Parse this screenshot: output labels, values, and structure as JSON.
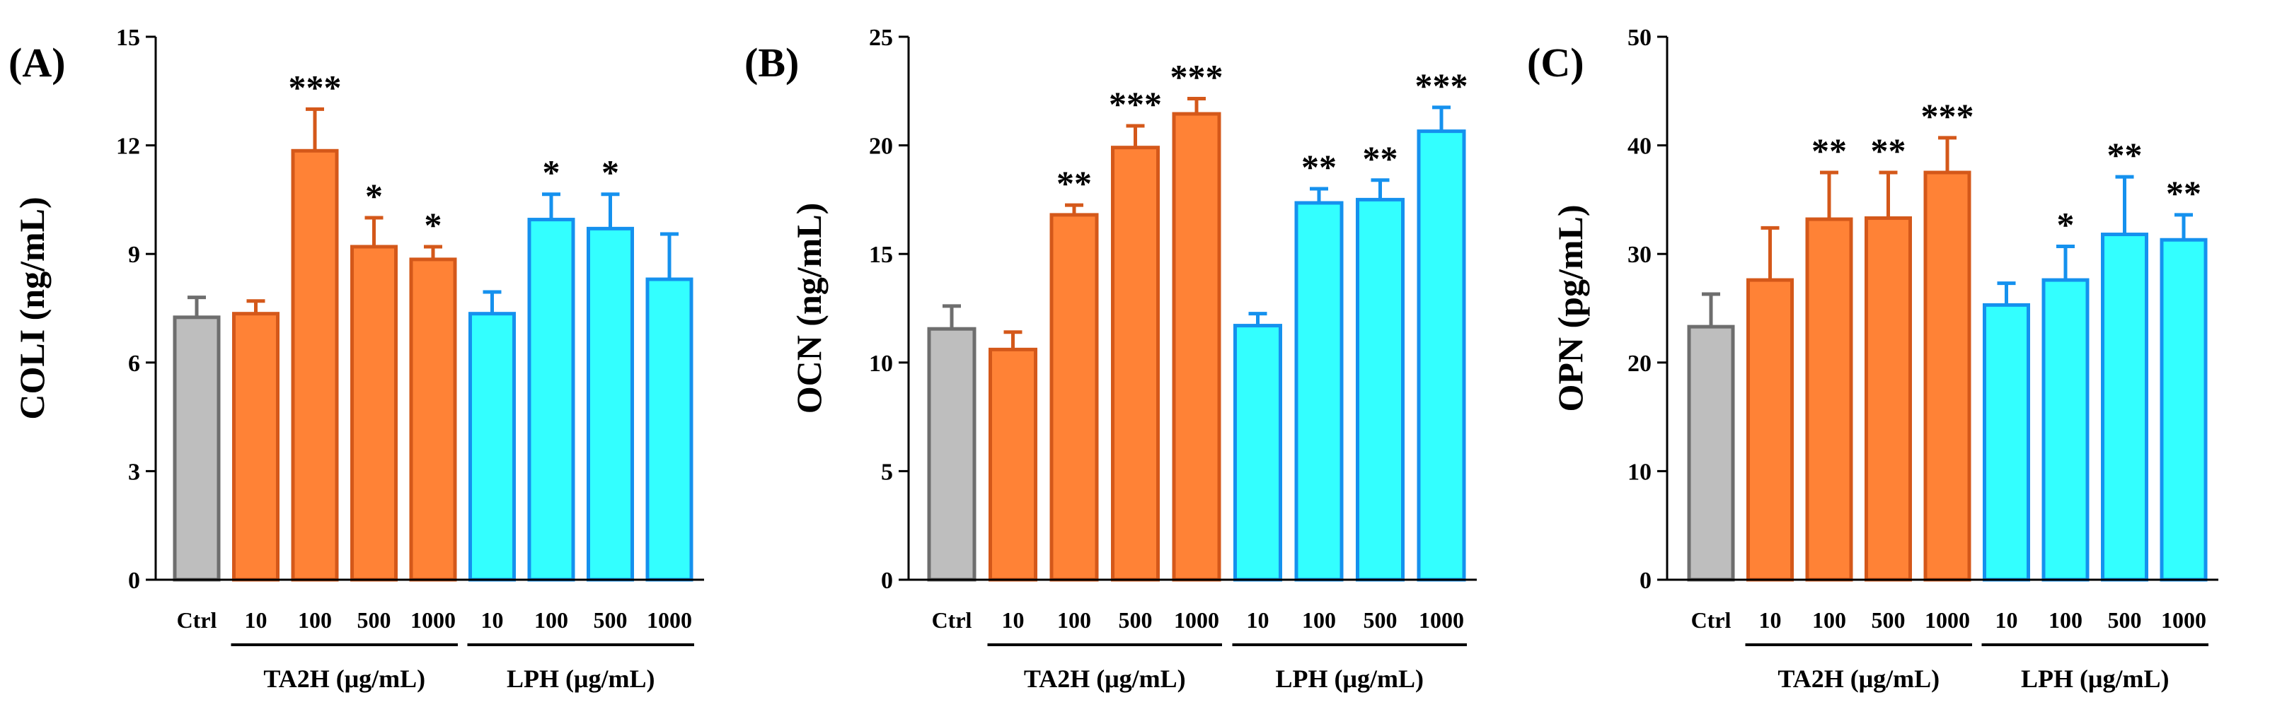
{
  "chart_data": [
    {
      "type": "bar",
      "panel_label": "(A)",
      "ylabel": "COLI (ng/mL)",
      "ylim": [
        0,
        15
      ],
      "yticks": [
        "0",
        "3",
        "6",
        "9",
        "12",
        "15"
      ],
      "categories": [
        "Ctrl",
        "10",
        "100",
        "500",
        "1000",
        "10",
        "100",
        "500",
        "1000"
      ],
      "groups": [
        "control",
        "TA2H",
        "TA2H",
        "TA2H",
        "TA2H",
        "LPH",
        "LPH",
        "LPH",
        "LPH"
      ],
      "values": [
        7.25,
        7.35,
        11.85,
        9.2,
        8.85,
        7.35,
        9.95,
        9.7,
        8.3
      ],
      "errors": [
        0.55,
        0.35,
        1.15,
        0.8,
        0.35,
        0.6,
        0.7,
        0.95,
        1.25
      ],
      "significance": [
        "",
        "",
        "***",
        "*",
        "*",
        "",
        "*",
        "*",
        ""
      ],
      "group_labels": [
        "TA2H (μg/mL)",
        "LPH (μg/mL)"
      ]
    },
    {
      "type": "bar",
      "panel_label": "(B)",
      "ylabel": "OCN (ng/mL)",
      "ylim": [
        0,
        25
      ],
      "yticks": [
        "0",
        "5",
        "10",
        "15",
        "20",
        "25"
      ],
      "categories": [
        "Ctrl",
        "10",
        "100",
        "500",
        "1000",
        "10",
        "100",
        "500",
        "1000"
      ],
      "groups": [
        "control",
        "TA2H",
        "TA2H",
        "TA2H",
        "TA2H",
        "LPH",
        "LPH",
        "LPH",
        "LPH"
      ],
      "values": [
        11.55,
        10.6,
        16.8,
        19.9,
        21.45,
        11.7,
        17.35,
        17.5,
        20.65
      ],
      "errors": [
        1.05,
        0.8,
        0.45,
        1.0,
        0.7,
        0.55,
        0.65,
        0.9,
        1.1
      ],
      "significance": [
        "",
        "",
        "**",
        "***",
        "***",
        "",
        "**",
        "**",
        "***"
      ],
      "group_labels": [
        "TA2H (μg/mL)",
        "LPH (μg/mL)"
      ]
    },
    {
      "type": "bar",
      "panel_label": "(C)",
      "ylabel": "OPN (pg/mL)",
      "ylim": [
        0,
        50
      ],
      "yticks": [
        "0",
        "10",
        "20",
        "30",
        "40",
        "50"
      ],
      "categories": [
        "Ctrl",
        "10",
        "100",
        "500",
        "1000",
        "10",
        "100",
        "500",
        "1000"
      ],
      "groups": [
        "control",
        "TA2H",
        "TA2H",
        "TA2H",
        "TA2H",
        "LPH",
        "LPH",
        "LPH",
        "LPH"
      ],
      "values": [
        23.3,
        27.6,
        33.2,
        33.3,
        37.5,
        25.3,
        27.6,
        31.8,
        31.3
      ],
      "errors": [
        3.0,
        4.8,
        4.3,
        4.2,
        3.2,
        2.0,
        3.1,
        5.3,
        2.3
      ],
      "significance": [
        "",
        "",
        "**",
        "**",
        "***",
        "",
        "*",
        "**",
        "**"
      ],
      "group_labels": [
        "TA2H (μg/mL)",
        "LPH (μg/mL)"
      ]
    }
  ],
  "colors": {
    "control_fill": "#bebebe",
    "control_stroke": "#6e6e6e",
    "TA2H_fill": "#ff8236",
    "TA2H_stroke": "#d4581a",
    "LPH_fill": "#33ffff",
    "LPH_stroke": "#1591ee",
    "axis": "#000000"
  }
}
